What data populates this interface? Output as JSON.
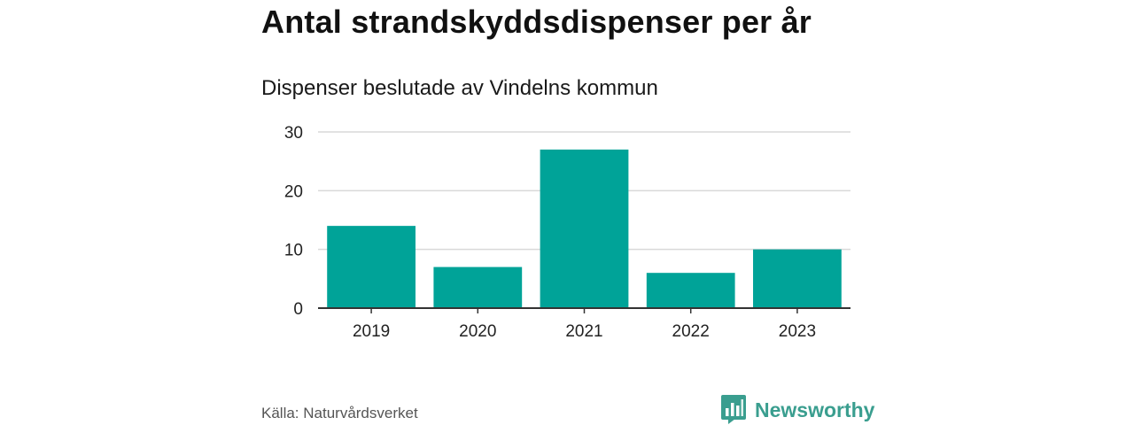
{
  "chart_data": {
    "type": "bar",
    "title": "Antal strandskyddsdispenser per år",
    "subtitle": "Dispenser beslutade av Vindelns kommun",
    "categories": [
      "2019",
      "2020",
      "2021",
      "2022",
      "2023"
    ],
    "values": [
      14,
      7,
      27,
      6,
      10
    ],
    "yticks": [
      0,
      10,
      20,
      30
    ],
    "ylim": [
      0,
      30
    ],
    "xlabel": "",
    "ylabel": "",
    "grid": true,
    "bar_color": "#00a398",
    "grid_color": "#d9d9d9",
    "axis_color": "#333333"
  },
  "footer": {
    "source": "Källa: Naturvårdsverket",
    "brand": "Newsworthy",
    "brand_color": "#3a9e8f"
  }
}
